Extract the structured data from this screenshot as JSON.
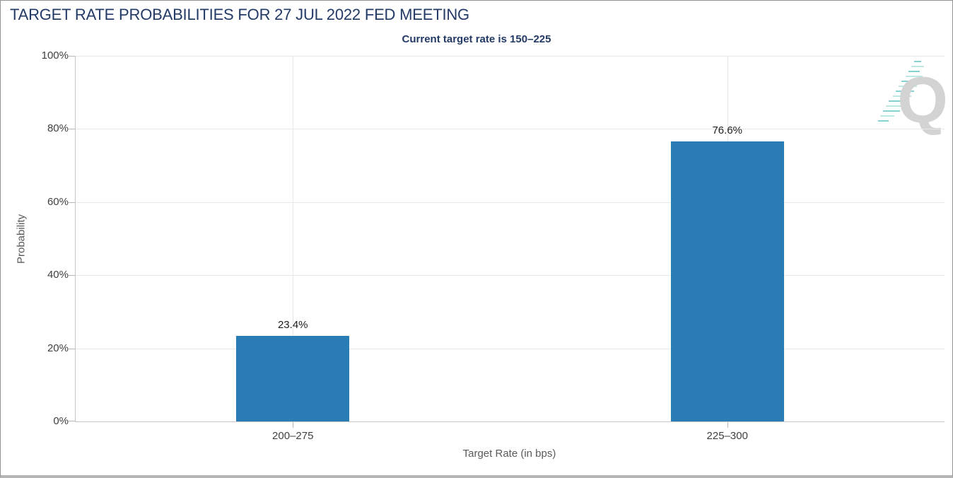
{
  "chart_data": {
    "type": "bar",
    "title": "TARGET RATE PROBABILITIES FOR 27 JUL 2022 FED MEETING",
    "subtitle": "Current target rate is 150–225",
    "categories": [
      "200–275",
      "225–300"
    ],
    "values": [
      23.4,
      76.6
    ],
    "value_labels": [
      "23.4%",
      "76.6%"
    ],
    "xlabel": "Target Rate (in bps)",
    "ylabel": "Probability",
    "ylim": [
      0,
      100
    ],
    "yticks": [
      {
        "value": 0,
        "label": "0%"
      },
      {
        "value": 20,
        "label": "20%"
      },
      {
        "value": 40,
        "label": "40%"
      },
      {
        "value": 60,
        "label": "60%"
      },
      {
        "value": 80,
        "label": "80%"
      },
      {
        "value": 100,
        "label": "100%"
      }
    ],
    "grid": true,
    "legend_position": "none",
    "bar_color": "#2a7cb5"
  },
  "logo": {
    "letter": "Q"
  },
  "colors": {
    "title": "#233a66",
    "bar": "#2a7cb5",
    "grid": "#e8e8e8",
    "axis": "#c6c6c6",
    "tick": "#b5b5b5",
    "tick_label": "#3f3f3f",
    "axis_title": "#5a5a5a",
    "value_label": "#1c1c1c",
    "logo_gray": "#d3d3d3",
    "logo_teal": "#86d2ce"
  }
}
